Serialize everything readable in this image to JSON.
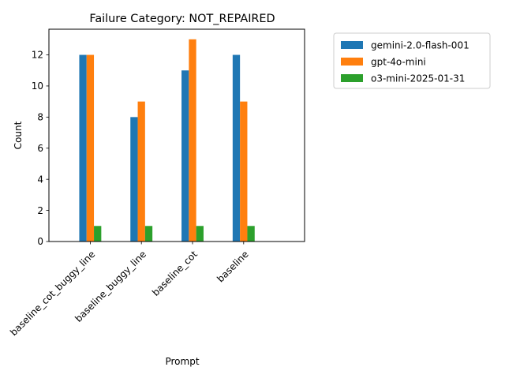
{
  "chart_data": {
    "type": "bar",
    "title": "Failure Category: NOT_REPAIRED",
    "xlabel": "Prompt",
    "ylabel": "Count",
    "categories": [
      "baseline_cot_buggy_line",
      "baseline_buggy_line",
      "baseline_cot",
      "baseline"
    ],
    "series": [
      {
        "name": "gemini-2.0-flash-001",
        "values": [
          12,
          8,
          11,
          12
        ],
        "color": "#1f77b4"
      },
      {
        "name": "gpt-4o-mini",
        "values": [
          12,
          9,
          13,
          9
        ],
        "color": "#ff7f0e"
      },
      {
        "name": "o3-mini-2025-01-31",
        "values": [
          1,
          1,
          1,
          1
        ],
        "color": "#2ca02c"
      }
    ],
    "ylim": [
      0,
      13.65
    ],
    "yticks": [
      0,
      2,
      4,
      6,
      8,
      10,
      12
    ],
    "grid": false,
    "legend_position": "outside-top-right"
  }
}
